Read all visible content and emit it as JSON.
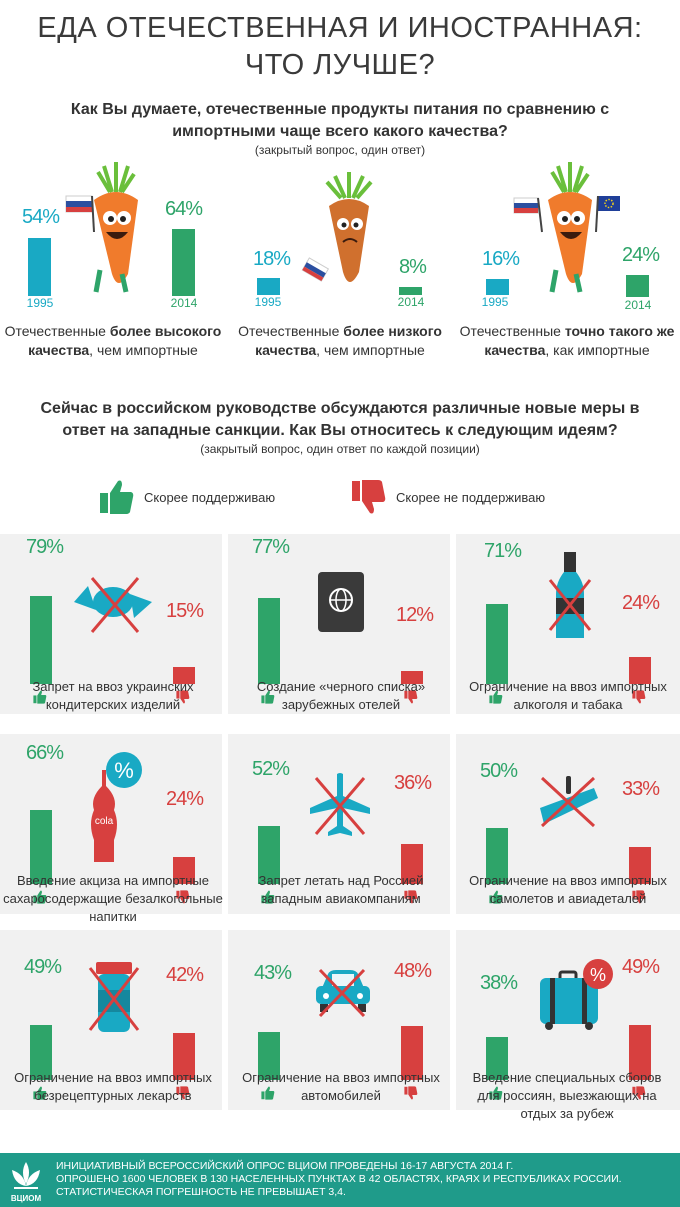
{
  "title_line1": "ЕДА ОТЕЧЕСТВЕННАЯ И ИНОСТРАННАЯ:",
  "title_line2": "ЧТО ЛУЧШЕ?",
  "question1": "Как Вы думаете, отечественные продукты питания по сравнению с импортными чаще всего какого качества?",
  "question1_note": "(закрытый вопрос, один ответ)",
  "quality": [
    {
      "pct_1995": "54%",
      "year_1995": "1995",
      "pct_2014": "64%",
      "year_2014": "2014",
      "cap_a": "Отечественные ",
      "cap_b": "более высокого качества",
      "cap_c": ", чем импортные",
      "value_1995": 54,
      "value_2014": 64
    },
    {
      "pct_1995": "18%",
      "year_1995": "1995",
      "pct_2014": "8%",
      "year_2014": "2014",
      "cap_a": "Отечественные ",
      "cap_b": "более низкого качества",
      "cap_c": ", чем импортные",
      "value_1995": 18,
      "value_2014": 8
    },
    {
      "pct_1995": "16%",
      "year_1995": "1995",
      "pct_2014": "24%",
      "year_2014": "2014",
      "cap_a": "Отечественные ",
      "cap_b": "точно такого же качества",
      "cap_c": ", как импортные",
      "value_1995": 16,
      "value_2014": 24
    }
  ],
  "question2": "Сейчас в российском руководстве обсуждаются различные новые меры в ответ на западные санкции. Как Вы относитесь к следующим идеям?",
  "question2_note": "(закрытый вопрос, один ответ по каждой позиции)",
  "legend": {
    "support": "Скорее поддерживаю",
    "oppose": "Скорее не поддерживаю"
  },
  "measures": [
    {
      "support": "79%",
      "oppose": "15%",
      "support_value": 79,
      "oppose_value": 15,
      "icon": "candy-icon",
      "caption": "Запрет на ввоз украинских кондитерских изделий"
    },
    {
      "support": "77%",
      "oppose": "12%",
      "support_value": 77,
      "oppose_value": 12,
      "icon": "passport-icon",
      "caption": "Создание «черного списка» зарубежных отелей"
    },
    {
      "support": "71%",
      "oppose": "24%",
      "support_value": 71,
      "oppose_value": 24,
      "icon": "bottle-icon",
      "caption": "Ограничение на ввоз импортных алкоголя и табака"
    },
    {
      "support": "66%",
      "oppose": "24%",
      "support_value": 66,
      "oppose_value": 24,
      "icon": "cola-icon",
      "caption": "Введение акциза на импортные сахаросодержащие безалкогольные напитки",
      "cola_label": "cola",
      "percent_sign": "%"
    },
    {
      "support": "52%",
      "oppose": "36%",
      "support_value": 52,
      "oppose_value": 36,
      "icon": "airplane-icon",
      "caption": "Запрет летать над Россией западным авиакомпаниям"
    },
    {
      "support": "50%",
      "oppose": "33%",
      "support_value": 50,
      "oppose_value": 33,
      "icon": "airplane-parts-icon",
      "caption": "Ограничение на ввоз импортных самолетов и авиадеталей"
    },
    {
      "support": "49%",
      "oppose": "42%",
      "support_value": 49,
      "oppose_value": 42,
      "icon": "pill-bottle-icon",
      "caption": "Ограничение на ввоз импортных безрецептурных лекарств"
    },
    {
      "support": "43%",
      "oppose": "48%",
      "support_value": 43,
      "oppose_value": 48,
      "icon": "car-icon",
      "caption": "Ограничение на ввоз импортных автомобилей"
    },
    {
      "support": "38%",
      "oppose": "49%",
      "support_value": 38,
      "oppose_value": 49,
      "icon": "suitcase-icon",
      "caption": "Введение специальных сборов для россиян, выезжающих на отдых за рубеж",
      "percent_sign": "%"
    }
  ],
  "footer": {
    "logo_text": "ВЦИОМ",
    "line1": "Инициативный всероссийский опрос ВЦИОМ проведены 16-17 августа 2014 г.",
    "line2": "Опрошено 1600 человек в 130 населенных пунктах в 42 областях, краях и республиках России.",
    "line3": "Статистическая погрешность не превышает 3,4."
  },
  "colors": {
    "teal": "#19a9c4",
    "green": "#2ea469",
    "red": "#d7403f",
    "footer": "#1f9b8a",
    "panel": "#f1f1f1",
    "carrot": "#f07b2c"
  }
}
